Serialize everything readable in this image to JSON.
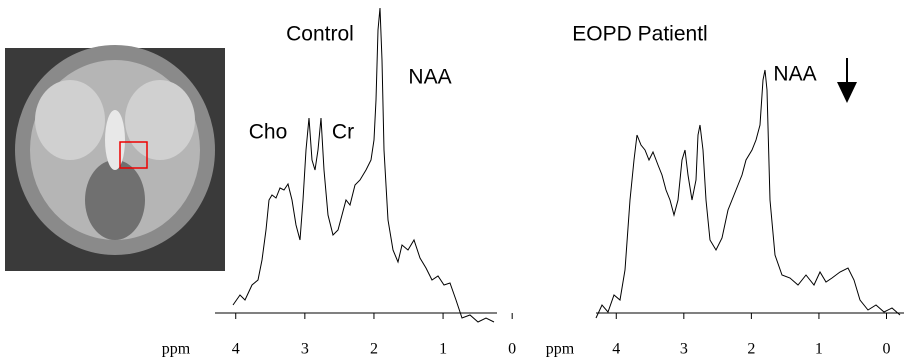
{
  "chart_data": [
    {
      "type": "spectrum",
      "title": "Control",
      "x_label": "ppm",
      "annotations": [
        "NAA",
        "Cho",
        "Cr"
      ],
      "xlim": [
        4.3,
        -0.2
      ],
      "xticks": [
        4,
        3,
        2,
        1,
        0
      ]
    },
    {
      "type": "spectrum",
      "title": "EOPD Patientl",
      "x_label": "ppm",
      "annotations": [
        "NAA"
      ],
      "xlim": [
        4.3,
        -0.2
      ],
      "xticks": [
        4,
        3,
        2,
        1,
        0
      ]
    }
  ]
}
